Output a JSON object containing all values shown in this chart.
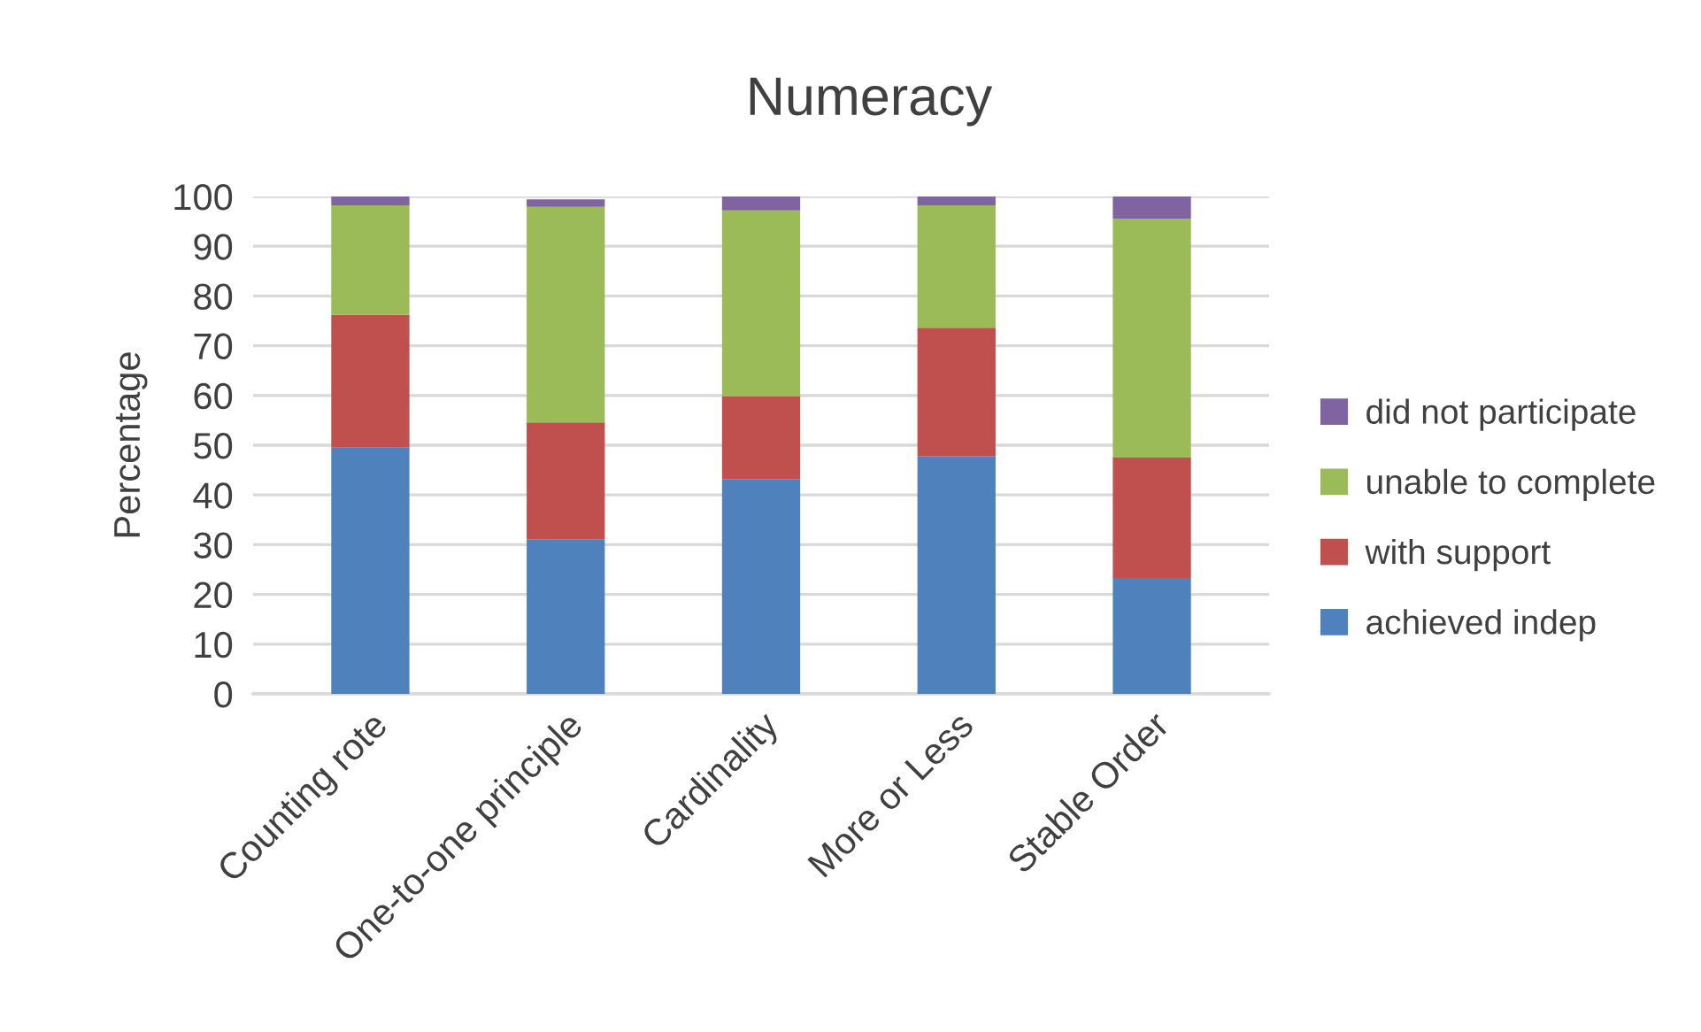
{
  "chart_data": {
    "type": "bar",
    "title": "Numeracy",
    "ylabel": "Percentage",
    "categories": [
      "Counting rote",
      "One-to-one principle",
      "Cardinality",
      "More or Less",
      "Stable Order"
    ],
    "stacked": true,
    "series": [
      {
        "name": "achieved indep",
        "color": "#4f81bd",
        "values": [
          49.5,
          31.1,
          43.2,
          47.8,
          23.3
        ]
      },
      {
        "name": "with support",
        "color": "#c0504d",
        "values": [
          26.7,
          23.5,
          16.6,
          25.8,
          24.2
        ]
      },
      {
        "name": "unable to complete",
        "color": "#9bbb59",
        "values": [
          22.0,
          43.3,
          37.4,
          24.6,
          48.0
        ]
      },
      {
        "name": "did not participate",
        "color": "#8064a2",
        "values": [
          1.8,
          1.5,
          2.8,
          1.8,
          4.5
        ]
      }
    ],
    "ylim": [
      0,
      100
    ],
    "yticks": [
      0,
      10,
      20,
      30,
      40,
      50,
      60,
      70,
      80,
      90,
      100
    ],
    "grid": "y",
    "legend": "right"
  }
}
